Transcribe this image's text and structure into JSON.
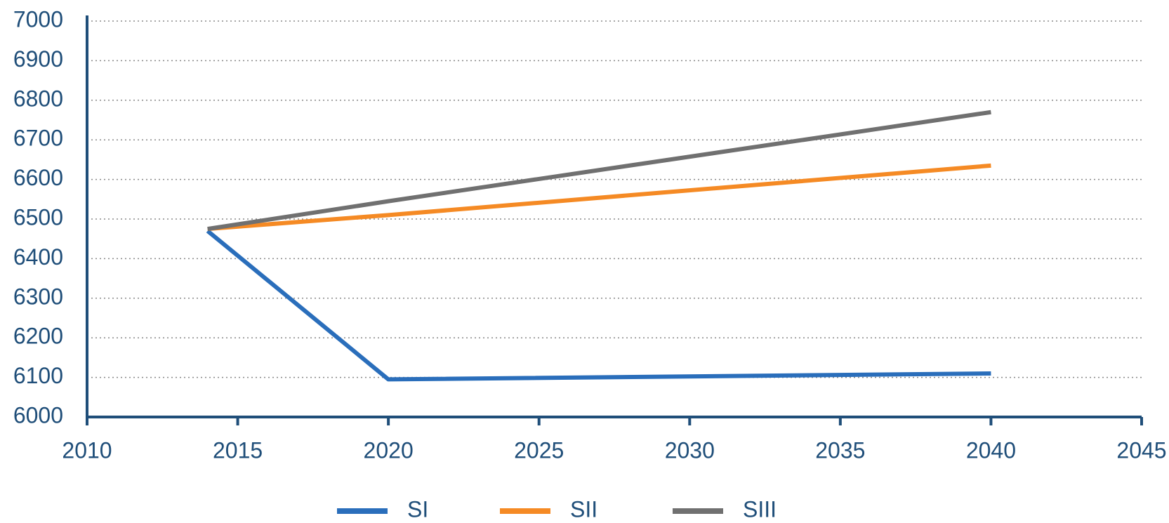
{
  "chart_data": {
    "type": "line",
    "x": [
      2014,
      2020,
      2040
    ],
    "series": [
      {
        "name": "SI",
        "color": "#2a6ebb",
        "values": [
          6470,
          6095,
          6110
        ]
      },
      {
        "name": "SII",
        "color": "#f58a24",
        "values": [
          6475,
          6510,
          6635
        ]
      },
      {
        "name": "SIII",
        "color": "#707070",
        "values": [
          6475,
          6545,
          6770
        ]
      }
    ],
    "xlim": [
      2010,
      2045
    ],
    "xticks": [
      2010,
      2015,
      2020,
      2025,
      2030,
      2035,
      2040,
      2045
    ],
    "ylim": [
      6000,
      7000
    ],
    "yticks": [
      6000,
      6100,
      6200,
      6300,
      6400,
      6500,
      6600,
      6700,
      6800,
      6900,
      7000
    ],
    "grid": true,
    "legend": "bottom"
  }
}
